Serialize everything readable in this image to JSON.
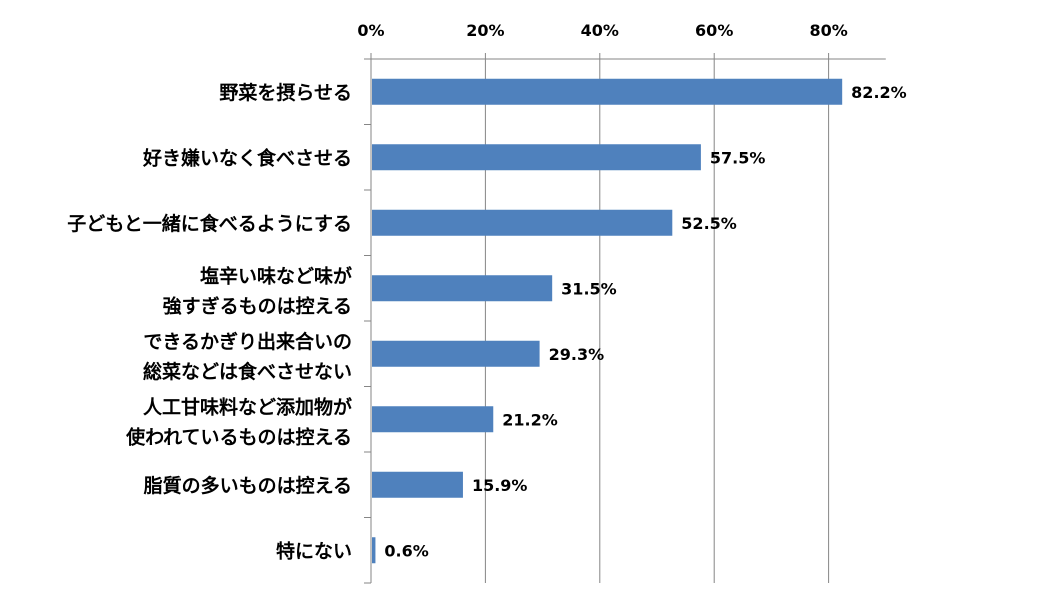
{
  "chart_data": {
    "type": "bar",
    "orientation": "horizontal",
    "title": "",
    "xlabel": "",
    "ylabel": "",
    "xlim": [
      0,
      90
    ],
    "x_ticks": [
      0,
      20,
      40,
      60,
      80
    ],
    "x_tick_labels": [
      "0%",
      "20%",
      "40%",
      "60%",
      "80%"
    ],
    "grid": "vertical",
    "legend": "none",
    "bar_color": "#4F81BD",
    "categories": [
      [
        "野菜を摂らせる"
      ],
      [
        "好き嫌いなく食べさせる"
      ],
      [
        "子どもと一緒に食べるようにする"
      ],
      [
        "塩辛い味など味が",
        "強すぎるものは控える"
      ],
      [
        "できるかぎり出来合いの",
        "総菜などは食べさせない"
      ],
      [
        "人工甘味料など添加物が",
        "使われているものは控える"
      ],
      [
        "脂質の多いものは控える"
      ],
      [
        "特にない"
      ]
    ],
    "values": [
      82.2,
      57.5,
      52.5,
      31.5,
      29.3,
      21.2,
      15.9,
      0.6
    ],
    "data_labels": [
      "82.2%",
      "57.5%",
      "52.5%",
      "31.5%",
      "29.3%",
      "21.2%",
      "15.9%",
      "0.6%"
    ]
  }
}
